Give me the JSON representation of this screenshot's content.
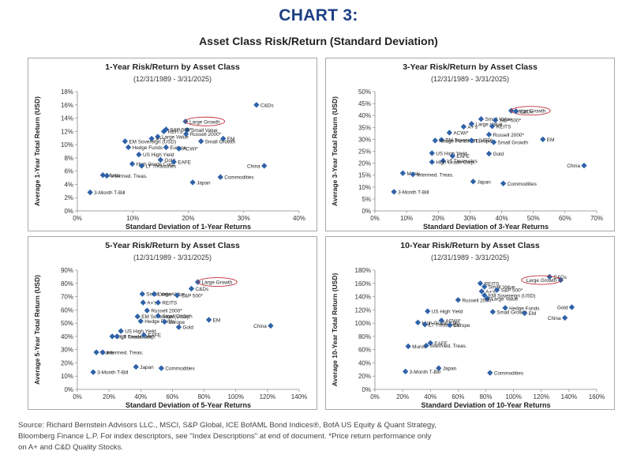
{
  "header": {
    "title": "CHART 3:",
    "subtitle": "Asset Class Risk/Return (Standard Deviation)"
  },
  "footnote": {
    "lines": [
      "Source: Richard Bernstein Advisors LLC., MSCI, S&P Global, ICE BofAML Bond Indices®, BofA US Equity & Quant Strategy,",
      "Bloomberg Finance L.P. For index descriptors, see \"Index Descriptions\" at end of document. *Price return performance only",
      "on A+ and C&D Quality Stocks."
    ]
  },
  "colors": {
    "marker": "#2f62a8",
    "title": "#1d3f84",
    "highlight": "#c0303a"
  },
  "chart_data": [
    {
      "type": "scatter",
      "title": "1-Year Risk/Return by Asset Class",
      "subtitle": "(12/31/1989 - 3/31/2025)",
      "xlabel": "Standard Deviation of  1-Year Returns",
      "ylabel": "Average 1-Year Total Return (USD)",
      "xlim": [
        0,
        40
      ],
      "ylim": [
        0,
        18
      ],
      "xticks": [
        0,
        10,
        20,
        30,
        40
      ],
      "yticks": [
        0,
        2,
        4,
        6,
        8,
        10,
        12,
        14,
        16,
        18
      ],
      "xtick_labels": [
        "0%",
        "10%",
        "20%",
        "30%",
        "40%"
      ],
      "ytick_labels": [
        "0%",
        "2%",
        "4%",
        "6%",
        "8%",
        "10%",
        "12%",
        "14%",
        "16%",
        "18%"
      ],
      "highlight": "Large Growth",
      "points": [
        {
          "label": "C&Ds",
          "x": 32.3,
          "y": 16.0
        },
        {
          "label": "Large Growth",
          "x": 19.5,
          "y": 13.5
        },
        {
          "label": "Small Value",
          "x": 19.8,
          "y": 12.2
        },
        {
          "label": "REITS",
          "x": 15.6,
          "y": 12.0
        },
        {
          "label": "S&P 500*",
          "x": 16.0,
          "y": 12.3
        },
        {
          "label": "Large Value",
          "x": 14.5,
          "y": 11.2
        },
        {
          "label": "Russell 2000*",
          "x": 19.6,
          "y": 11.6
        },
        {
          "label": "A+'s",
          "x": 13.4,
          "y": 10.9
        },
        {
          "label": "EM Sovereign (USD)",
          "x": 8.6,
          "y": 10.5
        },
        {
          "label": "EM",
          "x": 26.3,
          "y": 10.9
        },
        {
          "label": "Small Growth",
          "x": 22.3,
          "y": 10.5
        },
        {
          "label": "Hedge Funds",
          "x": 9.2,
          "y": 9.6
        },
        {
          "label": "Europe",
          "x": 16.0,
          "y": 9.6
        },
        {
          "label": "ACWI*",
          "x": 18.3,
          "y": 9.4
        },
        {
          "label": "US High Yield",
          "x": 11.1,
          "y": 8.5
        },
        {
          "label": "Gold",
          "x": 15.0,
          "y": 7.7
        },
        {
          "label": "High Grade Corp.",
          "x": 9.9,
          "y": 7.1
        },
        {
          "label": "LT Treasuries",
          "x": 11.6,
          "y": 6.8
        },
        {
          "label": "EAFE",
          "x": 17.4,
          "y": 7.4
        },
        {
          "label": "China",
          "x": 33.7,
          "y": 6.8
        },
        {
          "label": "Commodities",
          "x": 25.8,
          "y": 5.1
        },
        {
          "label": "Munis",
          "x": 4.6,
          "y": 5.4
        },
        {
          "label": "Intermed. Treas.",
          "x": 5.3,
          "y": 5.3
        },
        {
          "label": "Japan",
          "x": 20.8,
          "y": 4.3
        },
        {
          "label": "3-Month T-Bill",
          "x": 2.3,
          "y": 2.8
        }
      ]
    },
    {
      "type": "scatter",
      "title": "3-Year Risk/Return by Asset Class",
      "subtitle": "(12/31/1989 - 3/31/2025)",
      "xlabel": "Standard Deviation of  3-Year Returns",
      "ylabel": "Average 3-Year Total Return (USD)",
      "xlim": [
        0,
        70
      ],
      "ylim": [
        0,
        50
      ],
      "xticks": [
        0,
        10,
        20,
        30,
        40,
        50,
        60,
        70
      ],
      "yticks": [
        0,
        5,
        10,
        15,
        20,
        25,
        30,
        35,
        40,
        45,
        50
      ],
      "xtick_labels": [
        "0%",
        "10%",
        "20%",
        "30%",
        "40%",
        "50%",
        "60%",
        "70%"
      ],
      "ytick_labels": [
        "0%",
        "5%",
        "10%",
        "15%",
        "20%",
        "25%",
        "30%",
        "35%",
        "40%",
        "45%",
        "50%"
      ],
      "highlight": "Large Growth",
      "points": [
        {
          "label": "Large Growth",
          "x": 43.0,
          "y": 42.0
        },
        {
          "label": "C&Ds",
          "x": 44.5,
          "y": 41.8
        },
        {
          "label": "Small Value",
          "x": 33.5,
          "y": 38.5
        },
        {
          "label": "S&P 500*",
          "x": 38.0,
          "y": 38.0
        },
        {
          "label": "Large Value",
          "x": 30.5,
          "y": 36.5
        },
        {
          "label": "REITS",
          "x": 37.0,
          "y": 35.5
        },
        {
          "label": "A+'s",
          "x": 28.0,
          "y": 35.3
        },
        {
          "label": "ACWI*",
          "x": 23.5,
          "y": 32.8
        },
        {
          "label": "Russell 2000*",
          "x": 36.0,
          "y": 32.0
        },
        {
          "label": "EM Sovereign (USD)",
          "x": 21.0,
          "y": 29.8
        },
        {
          "label": "Hedge Funds",
          "x": 19.0,
          "y": 29.5
        },
        {
          "label": "EM",
          "x": 53.0,
          "y": 30.0
        },
        {
          "label": "Europe",
          "x": 30.5,
          "y": 29.5
        },
        {
          "label": "Small Growth",
          "x": 37.5,
          "y": 28.8
        },
        {
          "label": "US High Yield",
          "x": 18.0,
          "y": 24.2
        },
        {
          "label": "EAFE",
          "x": 24.5,
          "y": 23.0
        },
        {
          "label": "Gold",
          "x": 36.0,
          "y": 24.0
        },
        {
          "label": "LT Treasuries",
          "x": 21.5,
          "y": 21.0
        },
        {
          "label": "High Grade Corp.",
          "x": 18.0,
          "y": 20.5
        },
        {
          "label": "China",
          "x": 66.0,
          "y": 19.0
        },
        {
          "label": "Munis",
          "x": 8.8,
          "y": 15.8
        },
        {
          "label": "Intermed. Treas.",
          "x": 12.0,
          "y": 15.3
        },
        {
          "label": "Japan",
          "x": 31.0,
          "y": 12.3
        },
        {
          "label": "Commodities",
          "x": 40.5,
          "y": 11.5
        },
        {
          "label": "3-Month T-Bill",
          "x": 6.0,
          "y": 8.0
        }
      ]
    },
    {
      "type": "scatter",
      "title": "5-Year Risk/Return by Asset Class",
      "subtitle": "(12/31/1989 - 3/31/2025)",
      "xlabel": "Standard Deviation of 5-Year Returns",
      "ylabel": "Average 5-Year Total Return (USD)",
      "xlim": [
        0,
        140
      ],
      "ylim": [
        0,
        90
      ],
      "xticks": [
        0,
        20,
        40,
        60,
        80,
        100,
        120,
        140
      ],
      "yticks": [
        0,
        10,
        20,
        30,
        40,
        50,
        60,
        70,
        80,
        90
      ],
      "xtick_labels": [
        "0%",
        "20%",
        "40%",
        "60%",
        "80%",
        "100%",
        "120%",
        "140%"
      ],
      "ytick_labels": [
        "0%",
        "10%",
        "20%",
        "30%",
        "40%",
        "50%",
        "60%",
        "70%",
        "80%",
        "90%"
      ],
      "highlight": "Large Growth",
      "points": [
        {
          "label": "Large Growth",
          "x": 76.0,
          "y": 81.0
        },
        {
          "label": "C&Ds",
          "x": 72.0,
          "y": 76.0
        },
        {
          "label": "Small Value",
          "x": 41.0,
          "y": 72.0
        },
        {
          "label": "Large Value",
          "x": 48.5,
          "y": 72.0
        },
        {
          "label": "S&P 500*",
          "x": 63.0,
          "y": 71.0
        },
        {
          "label": "A+'s",
          "x": 41.5,
          "y": 65.5
        },
        {
          "label": "REITS",
          "x": 51.0,
          "y": 65.5
        },
        {
          "label": "Russell 2000*",
          "x": 44.0,
          "y": 59.5
        },
        {
          "label": "EM Sovereign (USD)",
          "x": 38.0,
          "y": 55.0
        },
        {
          "label": "Small Growth",
          "x": 51.0,
          "y": 55.5
        },
        {
          "label": "Hedge Funds",
          "x": 40.0,
          "y": 51.5
        },
        {
          "label": "Europe",
          "x": 55.0,
          "y": 51.0
        },
        {
          "label": "EM",
          "x": 83.0,
          "y": 52.5
        },
        {
          "label": "Gold",
          "x": 64.0,
          "y": 47.0
        },
        {
          "label": "China",
          "x": 122.0,
          "y": 48.0
        },
        {
          "label": "US High Yield",
          "x": 27.5,
          "y": 44.0
        },
        {
          "label": "High Grade Corp.",
          "x": 22.0,
          "y": 40.0
        },
        {
          "label": "LT Treasuries",
          "x": 25.0,
          "y": 40.0
        },
        {
          "label": "EAFE",
          "x": 42.0,
          "y": 41.0
        },
        {
          "label": "Munis",
          "x": 12.0,
          "y": 28.0
        },
        {
          "label": "Intermed. Treas.",
          "x": 16.0,
          "y": 28.0
        },
        {
          "label": "Japan",
          "x": 37.0,
          "y": 17.0
        },
        {
          "label": "Commodities",
          "x": 53.0,
          "y": 16.0
        },
        {
          "label": "3-Month T-Bill",
          "x": 10.0,
          "y": 13.0
        }
      ]
    },
    {
      "type": "scatter",
      "title": "10-Year Risk/Return by Asset Class",
      "subtitle": "(12/31/1989 - 3/31/2025)",
      "xlabel": "Standard Deviation of 10-Year Returns",
      "ylabel": "Average 10-Year Total Return (USD)",
      "xlim": [
        0,
        160
      ],
      "ylim": [
        0,
        180
      ],
      "xticks": [
        0,
        20,
        40,
        60,
        80,
        100,
        120,
        140,
        160
      ],
      "yticks": [
        0,
        20,
        40,
        60,
        80,
        100,
        120,
        140,
        160,
        180
      ],
      "xtick_labels": [
        "0%",
        "20%",
        "40%",
        "60%",
        "80%",
        "100%",
        "120%",
        "140%",
        "160%"
      ],
      "ytick_labels": [
        "0%",
        "20%",
        "40%",
        "60%",
        "80%",
        "100%",
        "120%",
        "140%",
        "160%",
        "180%"
      ],
      "highlight": "Large Growth",
      "points": [
        {
          "label": "C&Ds",
          "x": 126.0,
          "y": 170.0
        },
        {
          "label": "Large Growth",
          "x": 134.0,
          "y": 165.0
        },
        {
          "label": "REITS",
          "x": 76.0,
          "y": 160.0
        },
        {
          "label": "Small Value",
          "x": 79.0,
          "y": 155.0
        },
        {
          "label": "A+'s",
          "x": 77.0,
          "y": 148.0
        },
        {
          "label": "S&P 500*",
          "x": 88.0,
          "y": 150.0
        },
        {
          "label": "EM Sovereign (USD)",
          "x": 79.0,
          "y": 142.0
        },
        {
          "label": "Large Value",
          "x": 81.0,
          "y": 137.0
        },
        {
          "label": "Russell 2000*",
          "x": 60.0,
          "y": 135.0
        },
        {
          "label": "Hedge Funds",
          "x": 94.0,
          "y": 123.0
        },
        {
          "label": "Gold",
          "x": 142.0,
          "y": 124.0
        },
        {
          "label": "Small Growth",
          "x": 85.0,
          "y": 117.0
        },
        {
          "label": "EM",
          "x": 108.0,
          "y": 115.0
        },
        {
          "label": "China",
          "x": 137.0,
          "y": 108.0
        },
        {
          "label": "US High Yield",
          "x": 38.0,
          "y": 118.0
        },
        {
          "label": "High Grade Corp.",
          "x": 31.0,
          "y": 101.0
        },
        {
          "label": "LT Treasuries",
          "x": 36.0,
          "y": 98.0
        },
        {
          "label": "ACWI*",
          "x": 48.0,
          "y": 104.0
        },
        {
          "label": "Europe",
          "x": 54.0,
          "y": 97.0
        },
        {
          "label": "EAFE",
          "x": 40.0,
          "y": 70.0
        },
        {
          "label": "Intermed. Treas.",
          "x": 37.0,
          "y": 66.0
        },
        {
          "label": "Munis",
          "x": 24.0,
          "y": 65.0
        },
        {
          "label": "Japan",
          "x": 46.0,
          "y": 32.0
        },
        {
          "label": "3-Month T-Bill",
          "x": 22.0,
          "y": 27.0
        },
        {
          "label": "Commodities",
          "x": 83.0,
          "y": 25.0
        }
      ]
    }
  ]
}
